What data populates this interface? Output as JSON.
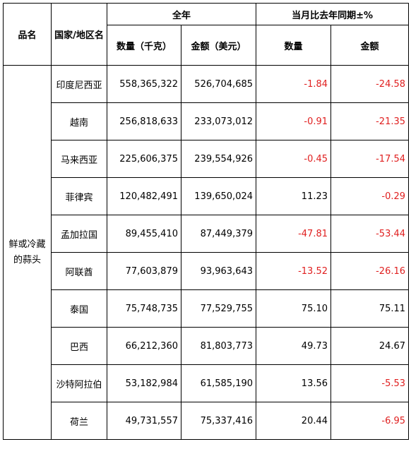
{
  "headers": {
    "product": "品名",
    "country": "国家/地区名",
    "full_year": "全年",
    "yoy": "当月比去年同期±%",
    "quantity_kg": "数量（千克）",
    "amount_usd": "金额（美元）",
    "quantity": "数量",
    "amount": "金额"
  },
  "product_name": "鲜或冷藏的蒜头",
  "rows": [
    {
      "country": "印度尼西亚",
      "qty": "558,365,322",
      "amt": "526,704,685",
      "qty_pct": "-1.84",
      "amt_pct": "-24.58"
    },
    {
      "country": "越南",
      "qty": "256,818,633",
      "amt": "233,073,012",
      "qty_pct": "-0.91",
      "amt_pct": "-21.35"
    },
    {
      "country": "马来西亚",
      "qty": "225,606,375",
      "amt": "239,554,926",
      "qty_pct": "-0.45",
      "amt_pct": "-17.54"
    },
    {
      "country": "菲律宾",
      "qty": "120,482,491",
      "amt": "139,650,024",
      "qty_pct": "11.23",
      "amt_pct": "-0.29"
    },
    {
      "country": "孟加拉国",
      "qty": "89,455,410",
      "amt": "87,449,379",
      "qty_pct": "-47.81",
      "amt_pct": "-53.44"
    },
    {
      "country": "阿联酋",
      "qty": "77,603,879",
      "amt": "93,963,643",
      "qty_pct": "-13.52",
      "amt_pct": "-26.16"
    },
    {
      "country": "泰国",
      "qty": "75,748,735",
      "amt": "77,529,755",
      "qty_pct": "75.10",
      "amt_pct": "75.11"
    },
    {
      "country": "巴西",
      "qty": "66,212,360",
      "amt": "81,803,773",
      "qty_pct": "49.73",
      "amt_pct": "24.67"
    },
    {
      "country": "沙特阿拉伯",
      "qty": "53,182,984",
      "amt": "61,585,190",
      "qty_pct": "13.56",
      "amt_pct": "-5.53"
    },
    {
      "country": "荷兰",
      "qty": "49,731,557",
      "amt": "75,337,416",
      "qty_pct": "20.44",
      "amt_pct": "-6.95"
    }
  ],
  "colors": {
    "negative": "#e02020",
    "positive": "#000000",
    "border": "#000000"
  }
}
